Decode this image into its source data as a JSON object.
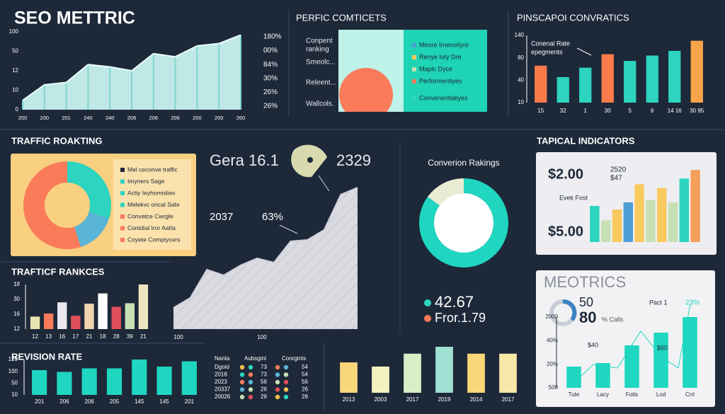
{
  "perfic": {
    "title": "PERFIC COMTICETS",
    "labels": [
      "Conpent",
      "ranking",
      "Smeolc...",
      "Releent...",
      "Wallcols."
    ],
    "legend": [
      "Meore Imenotlyre",
      "Renye loty Dre",
      "Maplc Dyce",
      "Performentiyes",
      "Convenentialiyes"
    ]
  },
  "dots": {
    "headers": [
      "Nanta",
      "Aubsgint",
      "Conrgints"
    ],
    "rows": [
      [
        "Dgoid",
        "73",
        "54"
      ],
      [
        "2018",
        "73",
        "54"
      ],
      [
        "2023",
        "56",
        "56"
      ],
      [
        "20337",
        "26",
        "26"
      ],
      [
        "20026",
        "29",
        "28"
      ]
    ]
  },
  "chart_data": [
    {
      "type": "area",
      "title": "SEO METTRIC",
      "categories": [
        "200",
        "200",
        "201",
        "240",
        "240",
        "206",
        "206",
        "206",
        "200",
        "200",
        "260"
      ],
      "values": [
        12,
        32,
        35,
        58,
        55,
        50,
        72,
        68,
        82,
        85,
        96
      ],
      "ylim": [
        0,
        100
      ],
      "color": "#c8f2ef",
      "y_labels": [
        "100",
        "50",
        "12",
        "10",
        "0"
      ],
      "right_labels": [
        "180%",
        "00%",
        "84%",
        "30%",
        "26%",
        "26%"
      ]
    },
    {
      "type": "bar",
      "title": "PINSCAPOI CONVRATICS",
      "annotations": [
        "Conenal Rate",
        "epegments"
      ],
      "categories": [
        "15",
        "32",
        "1",
        "30",
        "5",
        "6",
        "14 16",
        "30 95"
      ],
      "values": [
        55,
        38,
        52,
        72,
        62,
        70,
        77,
        92
      ],
      "ylim": [
        0,
        100
      ],
      "colors": [
        "#f97b4a",
        "#2dd4bf",
        "#2dd4bf",
        "#f97b4a",
        "#2dd4bf",
        "#2dd4bf",
        "#2dd4bf",
        "#f8a54a"
      ],
      "y_labels": [
        "140",
        "80",
        "40",
        "10"
      ]
    },
    {
      "type": "pie",
      "title": "TRAFFIC ROAKTING",
      "values": [
        30,
        15,
        55
      ],
      "colors": [
        "#2dd4bf",
        "#5ab4d6",
        "#f97b5a"
      ],
      "legend": [
        "Mel cecorive traffic",
        "Imyners Sage",
        "Actiy Ieyhomislies",
        "Melekvc orical Sate",
        "Convatce Cwrgle",
        "Contdial Iror Aatta",
        "Coyete Comptycers"
      ],
      "legend_colors": [
        "#1d2839",
        "#2dd4bf",
        "#2dd4bf",
        "#2dd4bf",
        "#f97b5a",
        "#f97b5a",
        "#f97b5a"
      ]
    },
    {
      "type": "area",
      "annotations": [
        "Gera 16.1",
        "2329",
        "2037",
        "63%"
      ],
      "x": [
        0,
        1,
        2,
        3,
        4,
        5,
        6,
        7,
        8,
        9,
        10,
        11
      ],
      "xlim": [
        0,
        11
      ],
      "values": [
        15,
        22,
        42,
        38,
        45,
        50,
        47,
        62,
        63,
        70,
        95,
        100
      ],
      "ylim": [
        0,
        100
      ],
      "color": "#e4e4ea",
      "x_labels": [
        "100",
        "100"
      ]
    },
    {
      "type": "pie",
      "title": "Converion Rakings",
      "values": [
        85,
        15
      ],
      "colors": [
        "#1fd6c0",
        "#e9ecd2"
      ],
      "annotations": [
        "42.67",
        "Fror.1.79"
      ]
    },
    {
      "type": "bar",
      "title": "TAPICAL INDICATORS",
      "annotations": [
        "$2.00",
        "2520",
        "$47",
        "Evek Fost",
        "$5.00"
      ],
      "values": [
        50,
        30,
        45,
        55,
        80,
        58,
        75,
        55,
        88,
        100
      ],
      "ylim": [
        0,
        100
      ],
      "colors": [
        "#2dd4bf",
        "#c6e0b4",
        "#f8c95d",
        "#4d9fd6",
        "#f8c95d",
        "#c6e0b4",
        "#f8c95d",
        "#c6e0b4",
        "#2dd4bf",
        "#f5a05a"
      ]
    },
    {
      "type": "bar",
      "title": "TRAFTICF RANKCES",
      "categories": [
        "12",
        "13",
        "16",
        "17",
        "21",
        "18",
        "28",
        "39",
        "21"
      ],
      "values": [
        28,
        35,
        60,
        30,
        57,
        80,
        50,
        58,
        100
      ],
      "ylim": [
        0,
        100
      ],
      "colors": [
        "#e8e3b0",
        "#f97b5a",
        "#e8e8ee",
        "#e0505a",
        "#f0d6b0",
        "#ffffff",
        "#e0505a",
        "#c6e0b4",
        "#efe6c0"
      ],
      "y_labels": [
        "18",
        "30",
        "16",
        "12"
      ]
    },
    {
      "type": "bar",
      "title": "MEOTRICS",
      "annotations": [
        "50",
        "80",
        "% Calls",
        "Pact 1",
        "23%",
        "$40",
        "$60"
      ],
      "categories": [
        "Tute",
        "Lacy",
        "Fotis",
        "Lod",
        "Crrl"
      ],
      "values": [
        30,
        35,
        60,
        78,
        100
      ],
      "ylim": [
        0,
        100
      ],
      "color": "#1fd6c0",
      "y_labels": [
        "2000",
        "40%",
        "20%",
        "500"
      ]
    },
    {
      "type": "bar",
      "title": "REVISION RATE",
      "categories": [
        "201",
        "206",
        "206",
        "205",
        "145",
        "145",
        "201"
      ],
      "values": [
        70,
        65,
        75,
        75,
        100,
        80,
        95
      ],
      "ylim": [
        0,
        100
      ],
      "color": "#1fd6c0",
      "y_labels": [
        "120",
        "100",
        "50",
        "10"
      ]
    },
    {
      "type": "bar",
      "categories": [
        "2013",
        "2003",
        "2017",
        "2019",
        "2014",
        "2017"
      ],
      "values": [
        66,
        57,
        85,
        100,
        85,
        85
      ],
      "ylim": [
        0,
        100
      ],
      "colors": [
        "#f8d77a",
        "#f4f1c0",
        "#d6efc6",
        "#9fe0d2",
        "#f8d77a",
        "#f6e9a8"
      ]
    }
  ]
}
